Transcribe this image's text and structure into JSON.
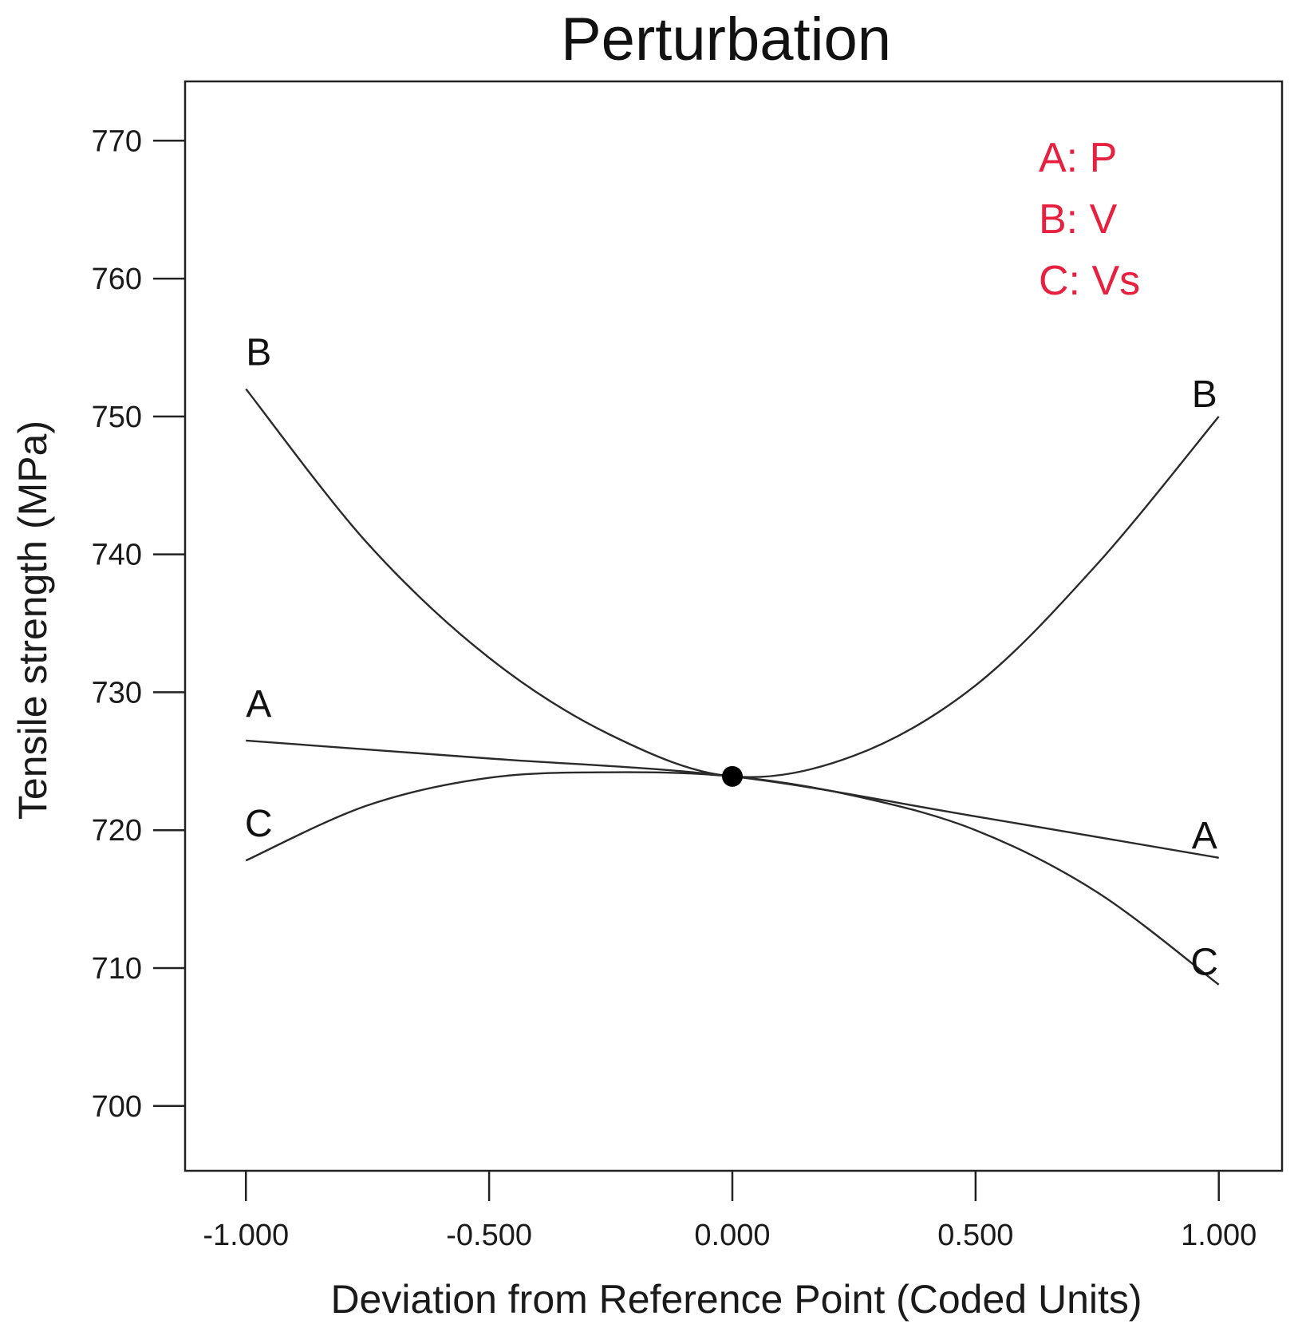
{
  "chart_data": {
    "type": "line",
    "title": "Perturbation",
    "xlabel": "Deviation from Reference Point (Coded Units)",
    "ylabel": "Tensile strength (MPa)",
    "xlim": [
      -1.125,
      1.13
    ],
    "ylim": [
      695.3,
      774.3
    ],
    "x_ticks": [
      -1.0,
      -0.5,
      0.0,
      0.5,
      1.0
    ],
    "x_tick_labels": [
      "-1.000",
      "-0.500",
      "0.000",
      "0.500",
      "1.000"
    ],
    "y_ticks": [
      700,
      710,
      720,
      730,
      740,
      750,
      760,
      770
    ],
    "y_tick_labels": [
      "700",
      "710",
      "720",
      "730",
      "740",
      "750",
      "760",
      "770"
    ],
    "grid": false,
    "reference_point": {
      "x": 0.0,
      "y": 723.9
    },
    "legend": {
      "position": "top-right",
      "color": "#e8203f",
      "entries": [
        "A: P",
        "B: V",
        "C: Vs"
      ]
    },
    "series": [
      {
        "name": "A",
        "label": "A",
        "x": [
          -1.0,
          -0.5,
          0.0,
          0.5,
          1.0
        ],
        "y": [
          726.5,
          725.2,
          723.9,
          721.0,
          718.0
        ]
      },
      {
        "name": "B",
        "label": "B",
        "x": [
          -1.0,
          -0.75,
          -0.5,
          -0.25,
          0.0,
          0.25,
          0.5,
          0.75,
          1.0
        ],
        "y": [
          752.0,
          740.8,
          732.5,
          726.9,
          723.9,
          725.4,
          730.5,
          739.3,
          750.0
        ]
      },
      {
        "name": "C",
        "label": "C",
        "x": [
          -1.0,
          -0.75,
          -0.5,
          -0.25,
          0.0,
          0.25,
          0.5,
          0.75,
          1.0
        ],
        "y": [
          717.8,
          721.8,
          723.8,
          724.2,
          723.9,
          722.5,
          720.0,
          715.5,
          708.8
        ]
      }
    ]
  }
}
